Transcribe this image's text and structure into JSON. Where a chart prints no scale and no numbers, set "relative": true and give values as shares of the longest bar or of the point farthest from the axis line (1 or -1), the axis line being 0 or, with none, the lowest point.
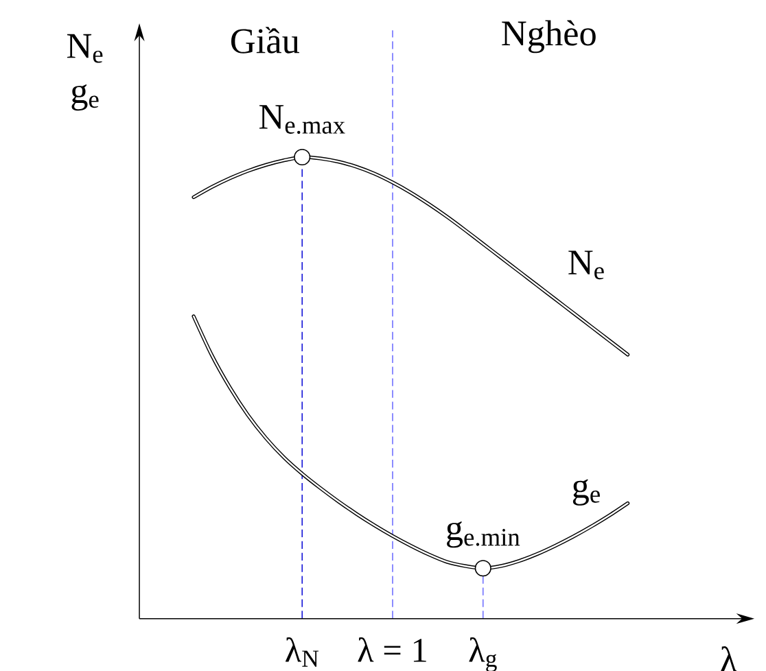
{
  "chart_data": {
    "type": "line",
    "relative": true,
    "tick_labels": "x",
    "xlabel": "λ",
    "ylabel": "N$_{e}$ g$_{e}$",
    "categories": [
      null,
      null,
      null,
      null,
      null,
      null,
      "λ$_{N}$",
      null,
      null,
      null,
      null,
      "λ = 1",
      null,
      null,
      null,
      null,
      "λ$_{g}$",
      null,
      null,
      null,
      null,
      null,
      null,
      null,
      null
    ],
    "series": [
      {
        "name": "N$_{e}$",
        "color": "#000000",
        "values": [
          0.913,
          0.935,
          0.954,
          0.97,
          0.983,
          0.993,
          1,
          0.997,
          0.99,
          0.979,
          0.964,
          0.945,
          0.923,
          0.898,
          0.871,
          0.842,
          0.812,
          0.782,
          0.752,
          0.722,
          0.692,
          0.662,
          0.632,
          0.602,
          0.572
        ]
      },
      {
        "name": "g$_{e}$",
        "color": "#000000",
        "values": [
          0.655,
          0.571,
          0.501,
          0.441,
          0.391,
          0.349,
          0.314,
          0.283,
          0.254,
          0.227,
          0.202,
          0.179,
          0.158,
          0.139,
          0.123,
          0.114,
          0.109,
          0.114,
          0.125,
          0.14,
          0.158,
          0.178,
          0.2,
          0.224,
          0.25
        ]
      }
    ],
    "ref_lines": [
      {
        "axis": "x",
        "value": "λ$_{N}$",
        "color": "#1a1ad9",
        "line_style": "dashed"
      },
      {
        "axis": "x",
        "value": "λ = 1",
        "color": "#7878ff",
        "line_style": "dashed"
      },
      {
        "axis": "x",
        "value": "λ$_{g}$",
        "color": "#7878ff",
        "line_style": "dashed"
      }
    ],
    "annotations": [
      "Giầu",
      "Nghèo",
      {
        "text": "N$_{e.max}$",
        "x": "λ$_{N}$",
        "y": 1
      },
      {
        "text": "g$_{e.min}$",
        "x": "λ$_{g}$",
        "y": 0.109
      }
    ]
  }
}
